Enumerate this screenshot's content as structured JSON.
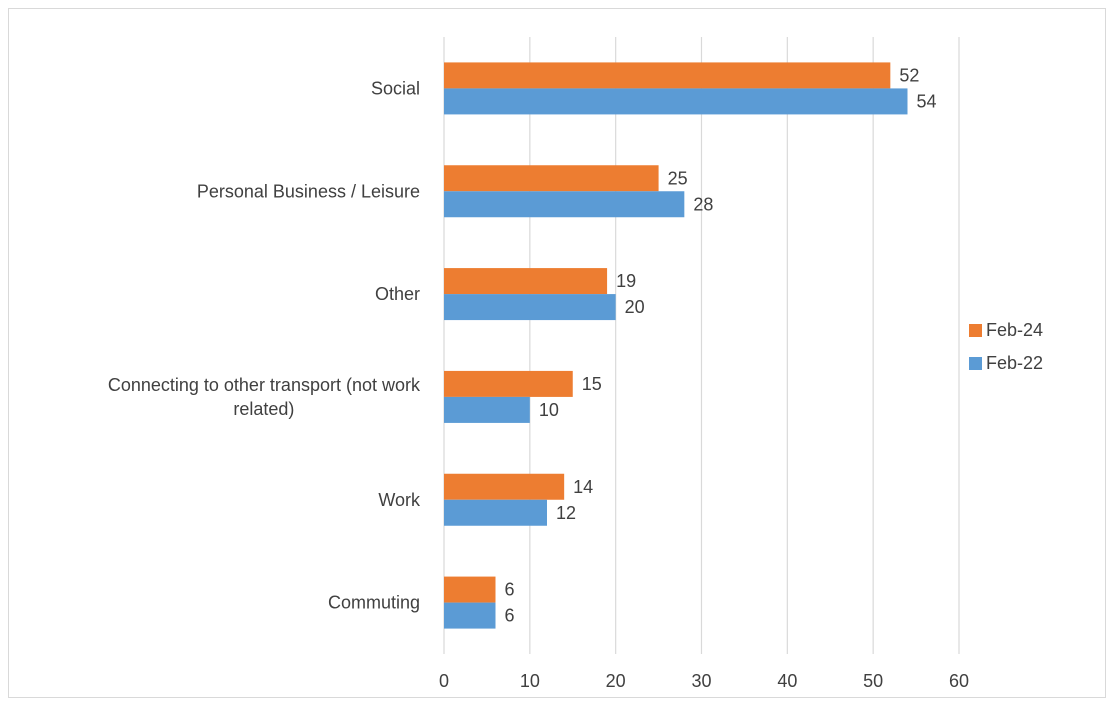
{
  "chart_data": {
    "type": "bar",
    "orientation": "horizontal",
    "categories": [
      "Social",
      "Personal Business / Leisure",
      "Other",
      "Connecting to other transport (not work related)",
      "Work",
      "Commuting"
    ],
    "category_lines": [
      [
        "Social"
      ],
      [
        "Personal Business / Leisure"
      ],
      [
        "Other"
      ],
      [
        "Connecting to other transport (not work",
        "related)"
      ],
      [
        "Work"
      ],
      [
        "Commuting"
      ]
    ],
    "series": [
      {
        "name": "Feb-24",
        "color": "#ED7D31",
        "values": [
          52,
          25,
          19,
          15,
          14,
          6
        ]
      },
      {
        "name": "Feb-22",
        "color": "#5B9BD5",
        "values": [
          54,
          28,
          20,
          10,
          12,
          6
        ]
      }
    ],
    "xlim": [
      0,
      60
    ],
    "x_ticks": [
      "0",
      "10",
      "20",
      "30",
      "40",
      "50",
      "60"
    ],
    "grid": true,
    "data_labels": true,
    "legend_position": "right"
  }
}
